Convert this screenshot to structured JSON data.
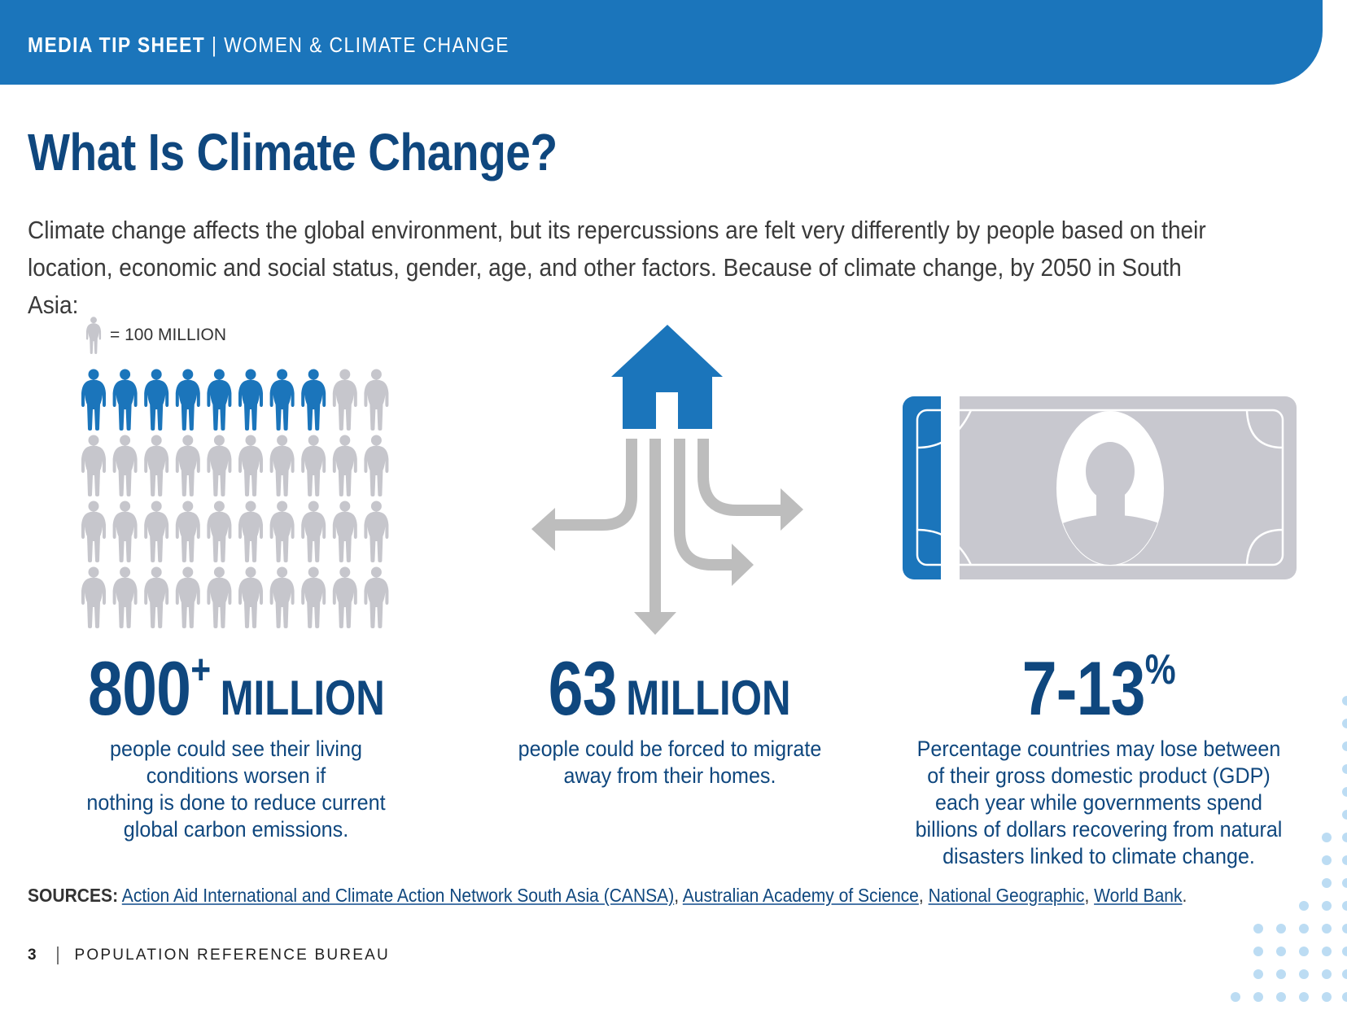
{
  "header": {
    "title_bold": "MEDIA TIP SHEET",
    "separator": "|",
    "subtitle": "WOMEN & CLIMATE CHANGE"
  },
  "page_title": "What Is Climate Change?",
  "intro": {
    "line1": "Climate change affects the global environment, but its repercussions are felt very differently by people based on their",
    "line2": "location, economic and social status, gender, age, and other factors. Because of climate change, by 2050 in South Asia:"
  },
  "colors": {
    "brand_blue": "#1b75bb",
    "dark_blue": "#0f477e",
    "icon_grey": "#c6c6cc",
    "arrow_grey": "#bdbdbd",
    "dot_blue": "#bcdcf3"
  },
  "pictogram": {
    "legend_icon": "person-icon",
    "legend_label": "= 100 MILLION",
    "total_figures": 40,
    "highlighted_figures": 8,
    "columns": 10
  },
  "stats": [
    {
      "icon": "people-pictogram",
      "number": "800",
      "superscript": "+",
      "unit": "MILLION",
      "description": [
        "people could see their living",
        "conditions worsen if",
        "nothing is done to reduce current",
        "global carbon emissions."
      ]
    },
    {
      "icon": "house-migration-icon",
      "number": "63",
      "superscript": "",
      "unit": "MILLION",
      "description": [
        "people could be forced to migrate",
        "away from their homes."
      ]
    },
    {
      "icon": "money-bill-icon",
      "number": "7-13",
      "superscript": "%",
      "unit": "",
      "description": [
        "Percentage countries may lose between",
        "of their gross domestic product (GDP)",
        "each year while governments spend",
        "billions of dollars recovering from natural",
        "disasters linked to climate change."
      ]
    }
  ],
  "sources": {
    "label": "SOURCES:",
    "links": [
      "Action Aid International and Climate Action Network South Asia (CANSA)",
      "Australian Academy of Science",
      "National Geographic",
      "World Bank"
    ],
    "separator": ",",
    "terminator": "."
  },
  "footer": {
    "page_number": "3",
    "organization": "POPULATION REFERENCE BUREAU"
  }
}
